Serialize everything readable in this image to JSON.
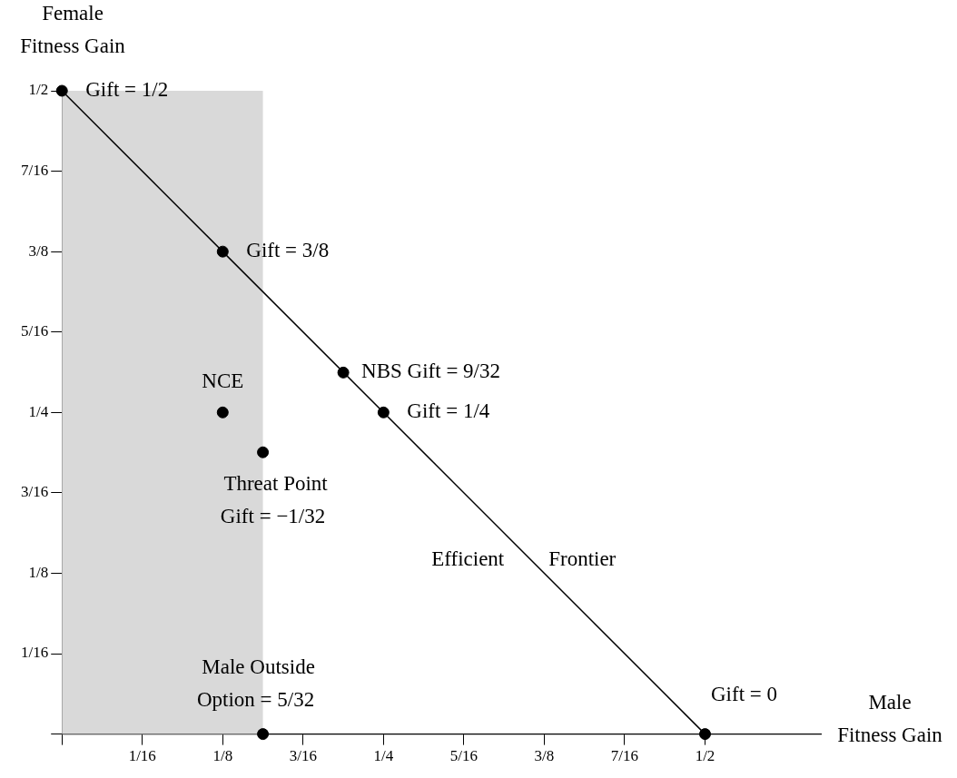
{
  "chart_data": {
    "type": "scatter",
    "xlabel": "Male\nFitness Gain",
    "ylabel": "Female\nFitness Gain",
    "xlim": [
      0,
      0.59
    ],
    "ylim": [
      0,
      0.5
    ],
    "xticks": [
      {
        "value": 0,
        "label": null
      },
      {
        "value": 0.0625,
        "label": "1/16"
      },
      {
        "value": 0.125,
        "label": "1/8"
      },
      {
        "value": 0.1875,
        "label": "3/16"
      },
      {
        "value": 0.25,
        "label": "1/4"
      },
      {
        "value": 0.3125,
        "label": "5/16"
      },
      {
        "value": 0.375,
        "label": "3/8"
      },
      {
        "value": 0.4375,
        "label": "7/16"
      },
      {
        "value": 0.5,
        "label": "1/2"
      }
    ],
    "yticks": [
      {
        "value": 0,
        "label": null
      },
      {
        "value": 0.0625,
        "label": "1/16"
      },
      {
        "value": 0.125,
        "label": "1/8"
      },
      {
        "value": 0.1875,
        "label": "3/16"
      },
      {
        "value": 0.25,
        "label": "1/4"
      },
      {
        "value": 0.3125,
        "label": "5/16"
      },
      {
        "value": 0.375,
        "label": "3/8"
      },
      {
        "value": 0.4375,
        "label": "7/16"
      },
      {
        "value": 0.5,
        "label": "1/2"
      }
    ],
    "series": [
      {
        "type": "line",
        "color": "#000000",
        "marker": "none",
        "x": [
          0,
          0.5
        ],
        "values": [
          0.5,
          0
        ]
      },
      {
        "type": "scatter",
        "color": "#000000",
        "marker": "circle",
        "x": [
          0,
          0.125,
          0.21875,
          0.25,
          0.5,
          0.125,
          0.15625,
          0.15625
        ],
        "values": [
          0.5,
          0.375,
          0.281,
          0.25,
          0,
          0.25,
          0.219,
          0
        ]
      }
    ],
    "bands": [
      {
        "axis": "x",
        "from": 0,
        "to": 0.15625,
        "color": "#d9d9d9"
      }
    ],
    "annotations": [
      {
        "text": "Gift = 1/2",
        "x": 0,
        "y": 0.5
      },
      {
        "text": "Gift = 3/8",
        "x": 0.125,
        "y": 0.375
      },
      {
        "text": "NBS Gift = 9/32",
        "x": 0.21875,
        "y": 0.281
      },
      {
        "text": "Gift = 1/4",
        "x": 0.25,
        "y": 0.25
      },
      {
        "text": "NCE",
        "x": 0.125,
        "y": 0.25
      },
      {
        "text": "Threat Point\nGift = −1/32",
        "x": 0.15625,
        "y": 0.219
      },
      {
        "text": "Male Outside\nOption = 5/32",
        "x": 0.15625,
        "y": 0
      },
      {
        "text": "Gift = 0",
        "x": 0.5,
        "y": 0
      },
      "Efficient",
      "Frontier"
    ],
    "grid": false,
    "legend": false
  }
}
